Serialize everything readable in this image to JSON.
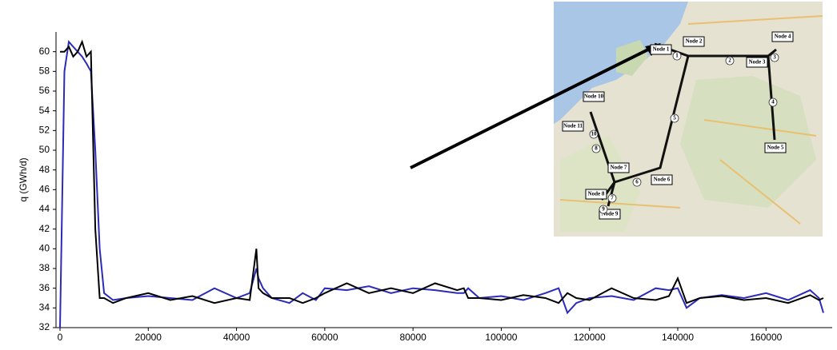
{
  "chart_data": {
    "type": "line",
    "y_label": "q (GWh/d)",
    "x": [
      0,
      1000,
      2000,
      3000,
      4000,
      5000,
      6000,
      7000,
      8000,
      9000,
      10000,
      12000,
      15000,
      20000,
      25000,
      30000,
      35000,
      40000,
      43000,
      44500,
      45000,
      46000,
      48000,
      52000,
      55000,
      58000,
      60000,
      65000,
      70000,
      75000,
      80000,
      85000,
      90000,
      91500,
      92500,
      95000,
      100000,
      105000,
      110000,
      113000,
      115000,
      117000,
      120000,
      125000,
      130000,
      135000,
      138000,
      140000,
      142000,
      145000,
      150000,
      155000,
      160000,
      165000,
      170000,
      172000,
      173000
    ],
    "series": [
      {
        "color": "#2b2bb8",
        "values": [
          32,
          58,
          61,
          60.5,
          60,
          59.5,
          58.8,
          58,
          50,
          40,
          35.5,
          34.8,
          35,
          35.2,
          35,
          34.8,
          36,
          35,
          35.5,
          38,
          37,
          36,
          35,
          34.5,
          35.5,
          34.8,
          36,
          35.8,
          36.2,
          35.5,
          36,
          35.8,
          35.5,
          35.5,
          36,
          35,
          35.2,
          34.8,
          35.5,
          36,
          33.5,
          34.5,
          35,
          35.2,
          34.8,
          36,
          35.8,
          36,
          34,
          35,
          35.3,
          35,
          35.5,
          34.8,
          35.8,
          35,
          33.5
        ]
      },
      {
        "color": "#000000",
        "values": [
          60,
          60,
          60.5,
          59.5,
          60,
          61,
          59.5,
          60,
          42,
          35,
          35,
          34.5,
          35,
          35.5,
          34.8,
          35.2,
          34.5,
          35,
          34.8,
          40,
          36,
          35.5,
          35,
          35,
          34.5,
          35,
          35.5,
          36.5,
          35.5,
          36,
          35.5,
          36.5,
          35.8,
          36,
          35,
          35,
          34.8,
          35.3,
          35,
          34.5,
          35.5,
          35,
          34.8,
          36,
          35,
          34.8,
          35.2,
          37,
          34.5,
          35,
          35.2,
          34.8,
          35,
          34.5,
          35.3,
          34.8,
          35
        ]
      }
    ],
    "xlim": [
      0,
      175000
    ],
    "ylim": [
      32,
      62
    ],
    "xticks": [
      0,
      20000,
      40000,
      60000,
      80000,
      100000,
      120000,
      140000,
      160000
    ],
    "yticks": [
      32,
      34,
      36,
      38,
      40,
      42,
      44,
      46,
      48,
      50,
      52,
      54,
      56,
      58,
      60
    ],
    "grid": false
  },
  "inset": {
    "nodes": [
      "Node 1",
      "Node 2",
      "Node 3",
      "Node 4",
      "Node 5",
      "Node 6",
      "Node 7",
      "Node 8",
      "Node 9",
      "Node 10",
      "Node 11"
    ],
    "pipes": [
      "1",
      "2",
      "3",
      "4",
      "5",
      "6",
      "7",
      "8",
      "9",
      "10"
    ]
  }
}
